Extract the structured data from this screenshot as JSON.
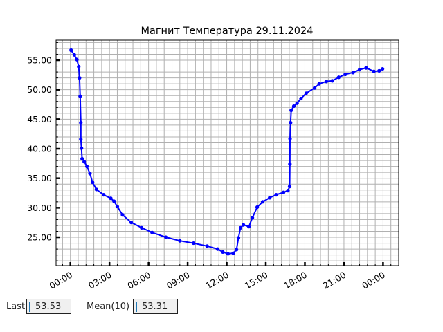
{
  "chart_data": {
    "type": "line",
    "title": "Магнит Температура 29.11.2024",
    "xlabel": "",
    "ylabel": "",
    "x_unit": "hours since 00:00 on 29.11.2024",
    "xlim": [
      -1.1,
      25.2
    ],
    "ylim": [
      20.2,
      58.4
    ],
    "x_ticks": [
      0,
      3,
      6,
      9,
      12,
      15,
      18,
      21,
      24
    ],
    "x_tick_labels": [
      "00:00",
      "03:00",
      "06:00",
      "09:00",
      "12:00",
      "15:00",
      "18:00",
      "21:00",
      "00:00"
    ],
    "y_ticks": [
      25,
      30,
      35,
      40,
      45,
      50,
      55
    ],
    "y_tick_labels": [
      "25.00",
      "30.00",
      "35.00",
      "40.00",
      "45.00",
      "50.00",
      "55.00"
    ],
    "grid": true,
    "color": "#0000ff",
    "marker": "dot",
    "x": [
      0.05,
      0.3,
      0.5,
      0.64,
      0.7,
      0.75,
      0.8,
      0.8,
      0.85,
      0.9,
      1.06,
      1.27,
      1.5,
      1.7,
      2.0,
      2.55,
      3.1,
      3.35,
      3.6,
      4.0,
      4.67,
      5.47,
      6.27,
      7.33,
      8.4,
      9.45,
      10.5,
      11.3,
      11.7,
      12.1,
      12.5,
      12.75,
      12.9,
      13.06,
      13.28,
      13.7,
      13.97,
      14.34,
      14.76,
      15.3,
      15.8,
      16.36,
      16.7,
      16.83,
      16.85,
      16.86,
      16.9,
      16.95,
      17.15,
      17.4,
      17.7,
      18.1,
      18.75,
      19.1,
      19.65,
      20.1,
      20.6,
      21.1,
      21.7,
      22.2,
      22.7,
      23.3,
      23.7,
      23.96
    ],
    "y": [
      56.7,
      55.9,
      55.1,
      53.9,
      52.0,
      48.9,
      44.4,
      41.6,
      40.1,
      38.3,
      37.8,
      37.0,
      35.8,
      34.3,
      33.1,
      32.2,
      31.6,
      31.1,
      30.2,
      28.8,
      27.5,
      26.6,
      25.8,
      25.0,
      24.4,
      24.0,
      23.5,
      23.0,
      22.5,
      22.2,
      22.3,
      22.9,
      24.9,
      26.6,
      27.1,
      26.8,
      28.3,
      30.1,
      31.0,
      31.7,
      32.2,
      32.6,
      32.9,
      33.6,
      37.4,
      41.7,
      44.4,
      46.5,
      47.2,
      47.7,
      48.5,
      49.4,
      50.3,
      51.0,
      51.4,
      51.5,
      52.1,
      52.6,
      52.9,
      53.4,
      53.7,
      53.1,
      53.2,
      53.53
    ]
  },
  "widgets": {
    "last_label": "Last",
    "last_value": "53.53",
    "mean_label": "Mean(10)",
    "mean_value": "53.31"
  }
}
